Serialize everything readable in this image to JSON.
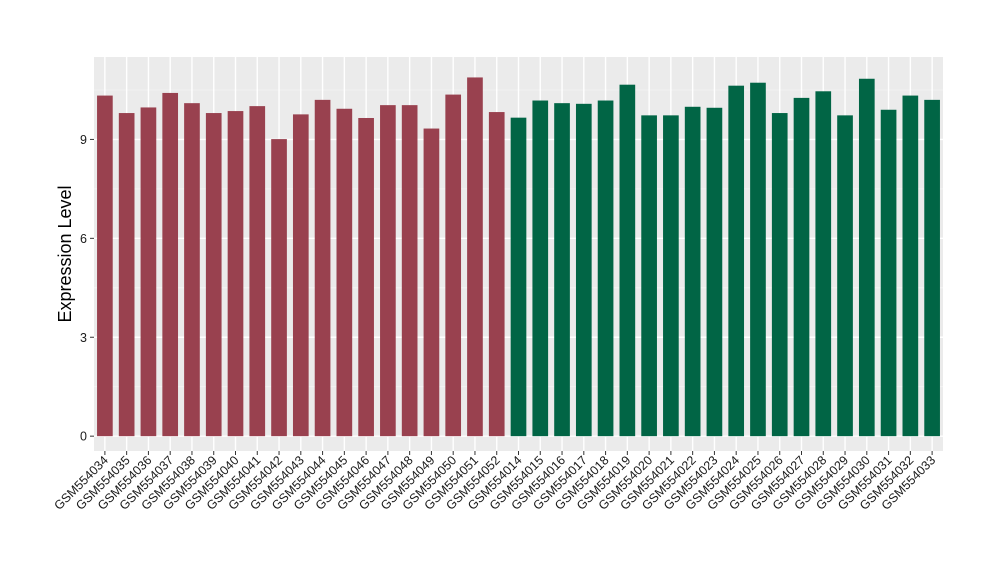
{
  "chart_data": {
    "type": "bar",
    "title": "",
    "xlabel": "",
    "ylabel": "Expression Level",
    "ylim": [
      -0.45,
      11.5
    ],
    "yticks": [
      0,
      3,
      6,
      9
    ],
    "grid": true,
    "background": "#ebebeb",
    "categories": [
      "GSM554034",
      "GSM554035",
      "GSM554036",
      "GSM554037",
      "GSM554038",
      "GSM554039",
      "GSM554040",
      "GSM554041",
      "GSM554042",
      "GSM554043",
      "GSM554044",
      "GSM554045",
      "GSM554046",
      "GSM554047",
      "GSM554048",
      "GSM554049",
      "GSM554050",
      "GSM554051",
      "GSM554052",
      "GSM554014",
      "GSM554015",
      "GSM554016",
      "GSM554017",
      "GSM554018",
      "GSM554019",
      "GSM554020",
      "GSM554021",
      "GSM554022",
      "GSM554023",
      "GSM554024",
      "GSM554025",
      "GSM554026",
      "GSM554027",
      "GSM554028",
      "GSM554029",
      "GSM554030",
      "GSM554031",
      "GSM554032",
      "GSM554033"
    ],
    "values": [
      10.33,
      9.8,
      9.97,
      10.41,
      10.1,
      9.8,
      9.86,
      10.01,
      9.01,
      9.76,
      10.2,
      9.93,
      9.65,
      10.04,
      10.04,
      9.33,
      10.36,
      10.88,
      9.83,
      9.66,
      10.18,
      10.1,
      10.08,
      10.18,
      10.66,
      9.73,
      9.73,
      9.99,
      9.96,
      10.63,
      10.72,
      9.8,
      10.26,
      10.46,
      9.73,
      10.84,
      9.9,
      10.33,
      10.2
    ],
    "bar_colors": [
      "#99414f",
      "#99414f",
      "#99414f",
      "#99414f",
      "#99414f",
      "#99414f",
      "#99414f",
      "#99414f",
      "#99414f",
      "#99414f",
      "#99414f",
      "#99414f",
      "#99414f",
      "#99414f",
      "#99414f",
      "#99414f",
      "#99414f",
      "#99414f",
      "#99414f",
      "#016545",
      "#016545",
      "#016545",
      "#016545",
      "#016545",
      "#016545",
      "#016545",
      "#016545",
      "#016545",
      "#016545",
      "#016545",
      "#016545",
      "#016545",
      "#016545",
      "#016545",
      "#016545",
      "#016545",
      "#016545",
      "#016545",
      "#016545"
    ],
    "legend": "none"
  }
}
